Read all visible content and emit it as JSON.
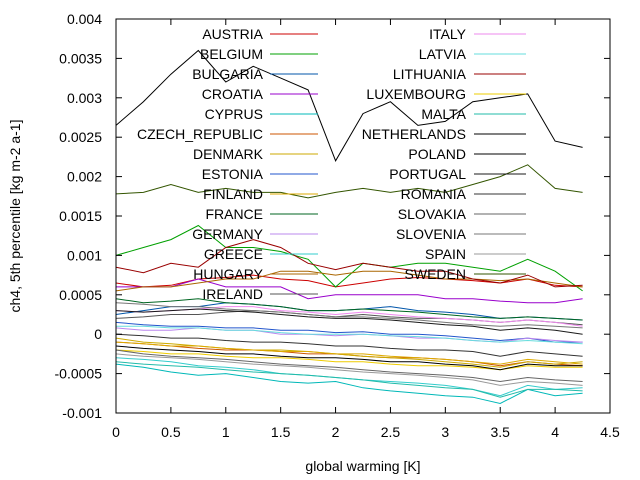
{
  "chart_data": {
    "type": "line",
    "title": "",
    "xlabel": "global warming [K]",
    "ylabel": "ch4, 5th percentile [kg m-2 a-1]",
    "xlim": [
      0,
      4.5
    ],
    "ylim": [
      -0.001,
      0.004
    ],
    "xticks": [
      "0",
      "0.5",
      "1",
      "1.5",
      "2",
      "2.5",
      "3",
      "3.5",
      "4",
      "4.5"
    ],
    "yticks": [
      "-0.001",
      "-0.0005",
      "0",
      "0.0005",
      "0.001",
      "0.0015",
      "0.002",
      "0.0025",
      "0.003",
      "0.0035",
      "0.004"
    ],
    "grid": false,
    "legend_placement": "top, two columns",
    "x": [
      0,
      0.25,
      0.5,
      0.75,
      1,
      1.25,
      1.5,
      1.75,
      2,
      2.25,
      2.5,
      2.75,
      3,
      3.25,
      3.5,
      3.75,
      4,
      4.25
    ],
    "series": [
      {
        "name": "AUSTRIA",
        "color": "#cc0000",
        "values": [
          0.00065,
          0.0006,
          0.00062,
          0.0007,
          0.00072,
          0.00075,
          0.0007,
          0.00068,
          0.0006,
          0.00065,
          0.0007,
          0.00072,
          0.0007,
          0.00068,
          0.00065,
          0.0007,
          0.00062,
          0.0006
        ]
      },
      {
        "name": "BELGIUM",
        "color": "#00a000",
        "values": [
          0.001,
          0.0011,
          0.0012,
          0.00138,
          0.0011,
          0.0011,
          0.00105,
          0.00095,
          0.0006,
          0.0009,
          0.00085,
          0.0009,
          0.0009,
          0.00085,
          0.0008,
          0.00095,
          0.0008,
          0.00055
        ]
      },
      {
        "name": "BULGARIA",
        "color": "#0055aa",
        "values": [
          0.00025,
          0.0003,
          0.00035,
          0.00035,
          0.0004,
          0.00038,
          0.00035,
          0.0003,
          0.0003,
          0.00032,
          0.00035,
          0.0003,
          0.00028,
          0.00025,
          0.0002,
          0.00022,
          0.0002,
          0.00018
        ]
      },
      {
        "name": "CROATIA",
        "color": "#9900cc",
        "values": [
          0.0006,
          0.0006,
          0.0006,
          0.0007,
          0.0006,
          0.0006,
          0.0006,
          0.00045,
          0.0005,
          0.0005,
          0.0005,
          0.0005,
          0.00045,
          0.00045,
          0.00042,
          0.0004,
          0.0004,
          0.00045
        ]
      },
      {
        "name": "CYPRUS",
        "color": "#00b8b8",
        "values": [
          -0.00038,
          -0.00042,
          -0.00048,
          -0.00052,
          -0.0005,
          -0.00055,
          -0.0006,
          -0.00062,
          -0.0006,
          -0.00068,
          -0.00072,
          -0.00075,
          -0.00078,
          -0.0008,
          -0.00088,
          -0.0007,
          -0.00078,
          -0.00075
        ]
      },
      {
        "name": "CZECH_REPUBLIC",
        "color": "#cc5500",
        "values": [
          -0.0001,
          -0.00012,
          -0.00015,
          -0.00018,
          -0.0002,
          -0.0002,
          -0.00022,
          -0.00025,
          -0.00025,
          -0.00028,
          -0.0003,
          -0.0003,
          -0.00032,
          -0.00035,
          -0.0004,
          -0.00035,
          -0.00038,
          -0.0004
        ]
      },
      {
        "name": "DENMARK",
        "color": "#ccaa00",
        "values": [
          -5e-05,
          -0.0001,
          -0.00012,
          -0.00015,
          -0.00018,
          -0.0002,
          -0.0002,
          -0.00022,
          -0.00025,
          -0.00028,
          -0.0003,
          -0.00032,
          -0.00035,
          -0.00038,
          -0.00042,
          -0.00035,
          -0.00038,
          -0.00035
        ]
      },
      {
        "name": "ESTONIA",
        "color": "#2255cc",
        "values": [
          0.00015,
          0.00012,
          0.0001,
          0.0001,
          8e-05,
          8e-05,
          5e-05,
          5e-05,
          2e-05,
          3e-05,
          0.0,
          0.0,
          -2e-05,
          -5e-05,
          -8e-05,
          -5e-05,
          -0.0001,
          -0.0001
        ]
      },
      {
        "name": "FINLAND",
        "color": "#ddaa00",
        "values": [
          -0.0001,
          -0.00012,
          -0.00015,
          -0.00015,
          -0.00018,
          -0.0002,
          -0.00022,
          -0.00022,
          -0.00025,
          -0.00025,
          -0.00028,
          -0.0003,
          -0.00032,
          -0.00035,
          -0.00038,
          -0.00032,
          -0.00035,
          -0.00038
        ]
      },
      {
        "name": "FRANCE",
        "color": "#006622",
        "values": [
          0.00045,
          0.0004,
          0.00042,
          0.00045,
          0.0004,
          0.00038,
          0.00035,
          0.0003,
          0.0003,
          0.00032,
          0.0003,
          0.00028,
          0.00025,
          0.00022,
          0.0002,
          0.00022,
          0.0002,
          0.00018
        ]
      },
      {
        "name": "GERMANY",
        "color": "#bb88ee",
        "values": [
          8e-05,
          5e-05,
          5e-05,
          8e-05,
          5e-05,
          5e-05,
          0.0,
          0.0,
          -2e-05,
          0.0,
          -2e-05,
          -5e-05,
          -5e-05,
          -8e-05,
          -0.0001,
          -5e-05,
          -8e-05,
          -0.0001
        ]
      },
      {
        "name": "GREECE",
        "color": "#33cccc",
        "values": [
          -0.0003,
          -0.00032,
          -0.00035,
          -0.0004,
          -0.00042,
          -0.00045,
          -0.0005,
          -0.00052,
          -0.00055,
          -0.00058,
          -0.0006,
          -0.00062,
          -0.00065,
          -0.0007,
          -0.00078,
          -0.00065,
          -0.0007,
          -0.00068
        ]
      },
      {
        "name": "HUNGARY",
        "color": "#aa6600",
        "values": [
          0.00055,
          0.0006,
          0.0006,
          0.00065,
          0.0007,
          0.0007,
          0.0008,
          0.0008,
          0.00075,
          0.0008,
          0.0008,
          0.00075,
          0.0007,
          0.0007,
          0.00068,
          0.0007,
          0.00065,
          0.0006
        ]
      },
      {
        "name": "IRELAND",
        "color": "#555555",
        "values": [
          0.0002,
          0.00022,
          0.00025,
          0.00025,
          0.00028,
          0.0003,
          0.00028,
          0.00025,
          0.00022,
          0.00025,
          0.00022,
          0.0002,
          0.0002,
          0.00018,
          0.00015,
          0.00018,
          0.00015,
          0.00012
        ]
      },
      {
        "name": "ITALY",
        "color": "#ee88ee",
        "values": [
          0.0003,
          0.00028,
          0.0003,
          0.00032,
          0.00035,
          0.00035,
          0.0003,
          0.00028,
          0.00025,
          0.00028,
          0.00025,
          0.00022,
          0.0002,
          0.00018,
          0.00015,
          0.00018,
          0.00015,
          0.0001
        ]
      },
      {
        "name": "LATVIA",
        "color": "#66dddd",
        "values": [
          0.0001,
          0.0001,
          8e-05,
          8e-05,
          5e-05,
          5e-05,
          2e-05,
          0.0,
          0.0,
          0.0,
          -2e-05,
          -3e-05,
          -5e-05,
          -8e-05,
          -0.0001,
          -8e-05,
          -0.0001,
          -0.00012
        ]
      },
      {
        "name": "LITHUANIA",
        "color": "#990000",
        "values": [
          0.00085,
          0.00078,
          0.0009,
          0.00085,
          0.0011,
          0.0012,
          0.0011,
          0.0009,
          0.00082,
          0.0009,
          0.00085,
          0.0008,
          0.0008,
          0.0007,
          0.00065,
          0.00075,
          0.0006,
          0.00062
        ]
      },
      {
        "name": "LUXEMBOURG",
        "color": "#eecc00",
        "values": [
          -0.0002,
          -0.00022,
          -0.00025,
          -0.00025,
          -0.00028,
          -0.0003,
          -0.0003,
          -0.00032,
          -0.00035,
          -0.00035,
          -0.00038,
          -0.0004,
          -0.0004,
          -0.00042,
          -0.00045,
          -0.0004,
          -0.00042,
          -0.00042
        ]
      },
      {
        "name": "MALTA",
        "color": "#22bbaa",
        "values": [
          -0.00035,
          -0.00038,
          -0.0004,
          -0.00042,
          -0.00045,
          -0.00048,
          -0.0005,
          -0.00052,
          -0.00055,
          -0.00058,
          -0.00062,
          -0.00065,
          -0.00068,
          -0.0007,
          -0.0008,
          -0.0007,
          -0.0007,
          -0.00072
        ]
      },
      {
        "name": "NETHERLANDS",
        "color": "#000000",
        "values": [
          0.00265,
          0.00295,
          0.0033,
          0.0036,
          0.0032,
          0.0034,
          0.00325,
          0.0031,
          0.0022,
          0.0028,
          0.00295,
          0.00265,
          0.0027,
          0.00295,
          0.003,
          0.00305,
          0.00245,
          0.00237
        ]
      },
      {
        "name": "POLAND",
        "color": "#000000",
        "values": [
          -0.00015,
          -0.00018,
          -0.0002,
          -0.00022,
          -0.00025,
          -0.00025,
          -0.00028,
          -0.0003,
          -0.0003,
          -0.00032,
          -0.00035,
          -0.00035,
          -0.00038,
          -0.0004,
          -0.00045,
          -0.00038,
          -0.0004,
          -0.0004
        ]
      },
      {
        "name": "PORTUGAL",
        "color": "#1a1a1a",
        "values": [
          0.0003,
          0.00028,
          0.0003,
          0.00032,
          0.0003,
          0.00028,
          0.00025,
          0.00022,
          0.0002,
          0.0002,
          0.00018,
          0.00015,
          0.00012,
          0.0001,
          5e-05,
          8e-05,
          5e-05,
          0.0
        ]
      },
      {
        "name": "ROMANIA",
        "color": "#333333",
        "values": [
          0.0,
          -2e-05,
          -5e-05,
          -5e-05,
          -8e-05,
          -0.0001,
          -0.0001,
          -0.00012,
          -0.00015,
          -0.00015,
          -0.00018,
          -0.0002,
          -0.0002,
          -0.00022,
          -0.00028,
          -0.00022,
          -0.00025,
          -0.00028
        ]
      },
      {
        "name": "SLOVAKIA",
        "color": "#666666",
        "values": [
          -0.0002,
          -0.00025,
          -0.00028,
          -0.0003,
          -0.00032,
          -0.00035,
          -0.00038,
          -0.0004,
          -0.00042,
          -0.00045,
          -0.00048,
          -0.0005,
          -0.00052,
          -0.00055,
          -0.0006,
          -0.00055,
          -0.00058,
          -0.0006
        ]
      },
      {
        "name": "SLOVENIA",
        "color": "#777777",
        "values": [
          0.0004,
          0.00038,
          0.00035,
          0.00035,
          0.00032,
          0.0003,
          0.00028,
          0.00025,
          0.00022,
          0.00022,
          0.0002,
          0.00018,
          0.00015,
          0.00012,
          0.0001,
          0.00012,
          0.0001,
          8e-05
        ]
      },
      {
        "name": "SPAIN",
        "color": "#999999",
        "values": [
          -0.00025,
          -0.00028,
          -0.0003,
          -0.00032,
          -0.00035,
          -0.00038,
          -0.0004,
          -0.00042,
          -0.00045,
          -0.00048,
          -0.0005,
          -0.00052,
          -0.00055,
          -0.00058,
          -0.00065,
          -0.0006,
          -0.00062,
          -0.00065
        ]
      },
      {
        "name": "SWEDEN",
        "color": "#335500",
        "values": [
          0.00178,
          0.0018,
          0.0019,
          0.0018,
          0.00185,
          0.0018,
          0.0018,
          0.00173,
          0.0018,
          0.00185,
          0.0018,
          0.00185,
          0.0018,
          0.0019,
          0.002,
          0.00215,
          0.00185,
          0.0018
        ]
      }
    ]
  }
}
